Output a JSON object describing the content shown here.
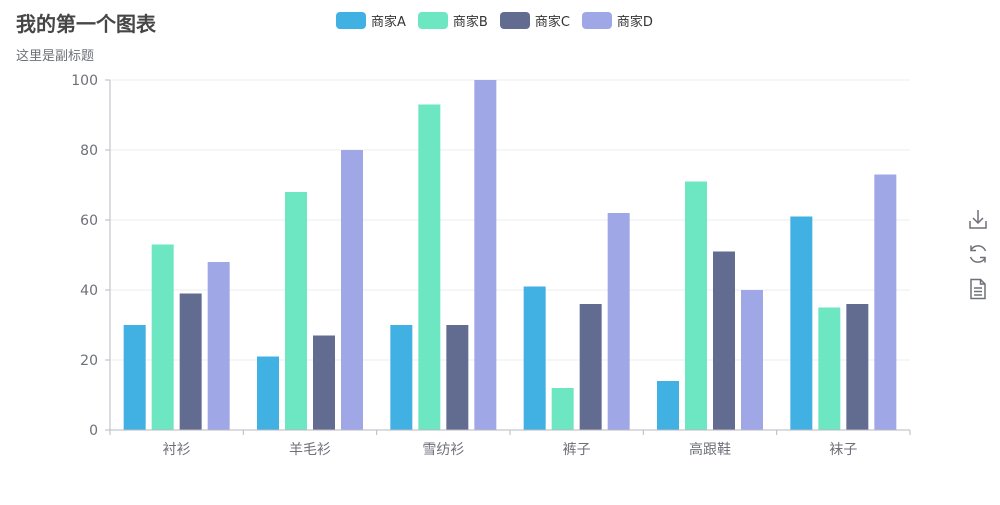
{
  "title": "我的第一个图表",
  "subtitle": "这里是副标题",
  "colors": {
    "axis": "#6e7079",
    "axisLine": "#b8b8c0",
    "grid": "#e9ecf0",
    "series": [
      "#41b0e2",
      "#6de6c2",
      "#626c91",
      "#a0a7e6"
    ]
  },
  "toolbox": {
    "icons": [
      "save-as-image-icon",
      "restore-icon",
      "data-view-icon"
    ]
  },
  "chart_data": {
    "type": "bar",
    "title": "我的第一个图表",
    "subtitle": "这里是副标题",
    "categories": [
      "衬衫",
      "羊毛衫",
      "雪纺衫",
      "裤子",
      "高跟鞋",
      "袜子"
    ],
    "series": [
      {
        "name": "商家A",
        "values": [
          30,
          21,
          30,
          41,
          14,
          61
        ]
      },
      {
        "name": "商家B",
        "values": [
          53,
          68,
          93,
          12,
          71,
          35
        ]
      },
      {
        "name": "商家C",
        "values": [
          39,
          27,
          30,
          36,
          51,
          36
        ]
      },
      {
        "name": "商家D",
        "values": [
          48,
          80,
          100,
          62,
          40,
          73
        ]
      }
    ],
    "xlabel": "",
    "ylabel": "",
    "ylim": [
      0,
      100
    ],
    "yticks": [
      0,
      20,
      40,
      60,
      80,
      100
    ],
    "grid": true,
    "legend_position": "top-center"
  }
}
